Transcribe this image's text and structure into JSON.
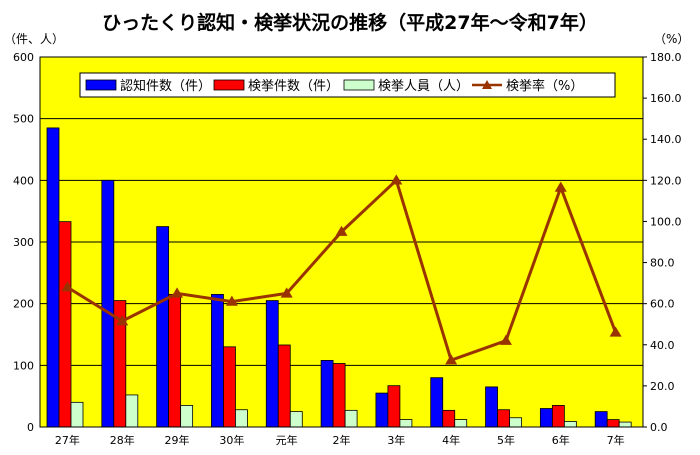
{
  "chart_data": {
    "type": "bar",
    "title": "ひったくり認知・検挙状況の推移（平成27年～令和7年）",
    "ylabel_left": "（件、人）",
    "ylabel_right": "（%）",
    "categories": [
      "27年",
      "28年",
      "29年",
      "30年",
      "元年",
      "2年",
      "3年",
      "4年",
      "5年",
      "6年",
      "7年"
    ],
    "ylim_left": [
      0,
      600
    ],
    "ylim_right": [
      0,
      180
    ],
    "yticks_left": [
      "0",
      "100",
      "200",
      "300",
      "400",
      "500",
      "600"
    ],
    "yticks_right": [
      "0.0",
      "20.0",
      "40.0",
      "60.0",
      "80.0",
      "100.0",
      "120.0",
      "140.0",
      "160.0",
      "180.0"
    ],
    "grid": true,
    "legend_position": "top",
    "plot_background": "#ffff00",
    "series": [
      {
        "name": "認知件数（件）",
        "type": "bar",
        "axis": "left",
        "color": "#0000ff",
        "values": [
          485,
          400,
          325,
          215,
          205,
          108,
          55,
          80,
          65,
          30,
          25
        ]
      },
      {
        "name": "検挙件数（件）",
        "type": "bar",
        "axis": "left",
        "color": "#ff0000",
        "values": [
          333,
          205,
          215,
          130,
          133,
          103,
          67,
          27,
          28,
          35,
          12
        ]
      },
      {
        "name": "検挙人員（人）",
        "type": "bar",
        "axis": "left",
        "color": "#ccffcc",
        "values": [
          40,
          52,
          35,
          28,
          25,
          27,
          12,
          12,
          15,
          9,
          8
        ]
      },
      {
        "name": "検挙率（%）",
        "type": "line",
        "axis": "right",
        "color": "#993300",
        "values": [
          68.0,
          51.5,
          65.0,
          61.0,
          65.0,
          95.0,
          120.0,
          32.5,
          42.0,
          116.5,
          46.0
        ]
      }
    ]
  }
}
